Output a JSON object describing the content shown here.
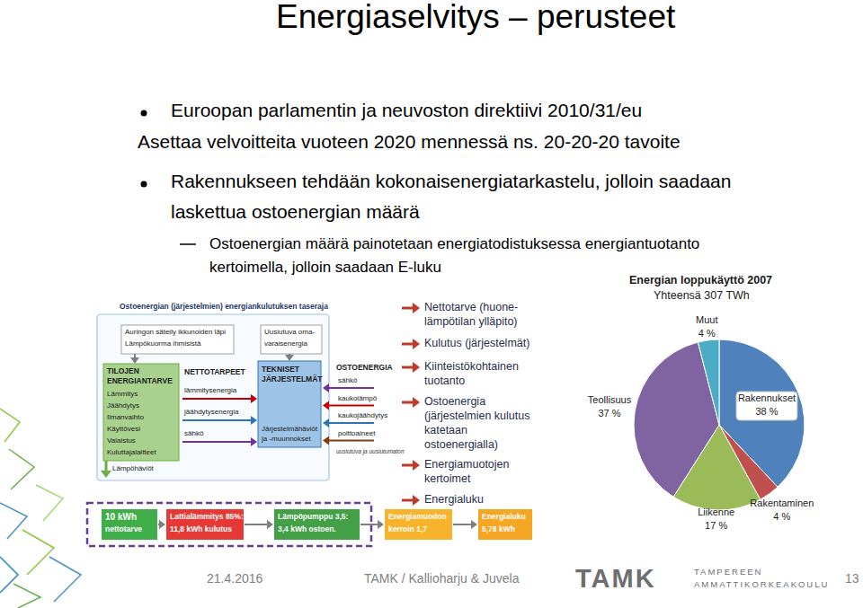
{
  "title": "Energiaselvitys – perusteet",
  "bullet_1": {
    "text": "Euroopan parlamentin ja neuvoston direktiivi 2010/31/eu",
    "continuation": "Asettaa velvoitteita vuoteen 2020 mennessä ns. 20-20-20 tavoite"
  },
  "bullet_2": {
    "lines": [
      "Rakennukseen tehdään kokonaisenergiatarkastelu, jolloin saadaan",
      "laskettua ostoenergian määrä"
    ],
    "sub_bullet": {
      "lines": [
        "Ostoenergian määrä painotetaan energiatodistuksessa energiantuotanto",
        "kertoimella, jolloin saadaan E-luku"
      ]
    }
  },
  "diagram": {
    "header": "Ostoenergian (järjestelmien) energiankulutuksen taseraja",
    "inputs": [
      "Auringon säteily ikkunoiden läpi",
      "Lämpökuorma ihmisistä"
    ],
    "renewable": [
      "Uusiutuva oma-",
      "varaisenergia"
    ],
    "demand": {
      "title": [
        "TILOJEN",
        "ENERGIANTARVE"
      ],
      "items": [
        "Lämmitys",
        "Jäähdytys",
        "Ilmanvaihto",
        "Käyttövesi",
        "Valaistus",
        "Kuluttajalaitteet"
      ]
    },
    "heat_losses": "Lämpöhäviöt",
    "net_needs": {
      "title": "NETTOTARPEET",
      "items": [
        "lämmitysenergia",
        "jäähdytysenergia",
        "sähkö"
      ]
    },
    "systems": {
      "title": [
        "TEKNISET",
        "JÄRJESTELMÄT"
      ],
      "losses": [
        "Järjestelmähäviöt",
        "ja -muunnokset"
      ]
    },
    "purchased": {
      "title": "OSTOENERGIA",
      "items": [
        "sähkö",
        "kaukolämpö",
        "kaukojäähdytys",
        "polttoaineet"
      ],
      "note": "uusiutuva ja uusiutumaton"
    }
  },
  "chain": [
    {
      "lines": [
        "10 kWh",
        "nettotarve"
      ]
    },
    {
      "lines": [
        "Lattialämmitys 85%:",
        "11,8 kWh kulutus"
      ]
    },
    {
      "lines": [
        "Lämpöpumppu 3,5:",
        "3,4 kWh ostoen."
      ]
    },
    {
      "lines": [
        "Energiamuodon",
        "kerroin 1,7"
      ]
    },
    {
      "lines": [
        "Energialuku",
        "5,78 kWh"
      ]
    }
  ],
  "steps": [
    {
      "lines": [
        "Nettotarve (huone-",
        "lämpötilan ylläpito)"
      ]
    },
    {
      "lines": [
        "Kulutus (järjestelmät)"
      ]
    },
    {
      "lines": [
        "Kiinteistökohtainen",
        "tuotanto"
      ]
    },
    {
      "lines": [
        "Ostoenergia",
        "(järjestelmien kulutus",
        "katetaan",
        "ostoenergialla)"
      ]
    },
    {
      "lines": [
        "Energiamuotojen",
        "kertoimet"
      ]
    },
    {
      "lines": [
        "Energialuku"
      ]
    }
  ],
  "chart_data": {
    "type": "pie",
    "title": "Energian loppukäyttö 2007",
    "subtitle": "Yhteensä 307 TWh",
    "categories": [
      "Rakennukset",
      "Rakentaminen",
      "Liikenne",
      "Teollisuus",
      "Muut"
    ],
    "values": [
      38,
      4,
      17,
      37,
      4
    ],
    "value_labels": [
      "38 %",
      "4 %",
      "17 %",
      "37 %",
      "4 %"
    ],
    "colors": [
      "#4f81bd",
      "#c0504d",
      "#9bbb59",
      "#8064a2",
      "#4bacc6"
    ],
    "data_labels": true
  },
  "footer": {
    "date": "21.4.2016",
    "author": "TAMK / Kallioharju & Juvela",
    "page": 13,
    "logo": "TAMK",
    "logo_name": [
      "TAMPEREEN",
      "AMMATTIKORKEAKOULU"
    ]
  }
}
